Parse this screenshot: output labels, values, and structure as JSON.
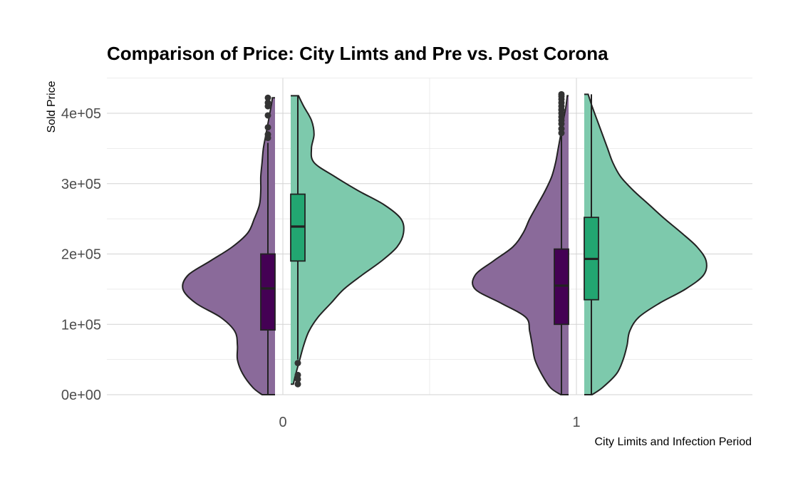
{
  "colors": {
    "pre": "#8a6a9a",
    "post": "#7dc9ac",
    "pre_box": "#440154",
    "post_box": "#22a671",
    "outline": "#222222",
    "grid": "#d3d3d3"
  },
  "chart_data": {
    "type": "violin",
    "title": "Comparison of Price: City Limts and Pre vs. Post Corona",
    "xlabel": "City Limits and Infection Period",
    "ylabel": "Sold Price",
    "ylim": [
      0,
      450000
    ],
    "yticks": [
      0,
      100000,
      200000,
      300000,
      400000
    ],
    "ytick_labels": [
      "0e+00",
      "1e+05",
      "2e+05",
      "3e+05",
      "4e+05"
    ],
    "categories": [
      "0",
      "1"
    ],
    "grid": true,
    "legend": "none",
    "series": [
      {
        "group": "0",
        "period": "pre",
        "violin": [
          [
            0,
            0.1
          ],
          [
            10000,
            0.17
          ],
          [
            30000,
            0.25
          ],
          [
            50000,
            0.29
          ],
          [
            70000,
            0.29
          ],
          [
            90000,
            0.31
          ],
          [
            110000,
            0.42
          ],
          [
            130000,
            0.61
          ],
          [
            150000,
            0.71
          ],
          [
            170000,
            0.67
          ],
          [
            190000,
            0.5
          ],
          [
            210000,
            0.33
          ],
          [
            230000,
            0.21
          ],
          [
            250000,
            0.16
          ],
          [
            270000,
            0.12
          ],
          [
            290000,
            0.11
          ],
          [
            310000,
            0.11
          ],
          [
            330000,
            0.1
          ],
          [
            350000,
            0.09
          ],
          [
            370000,
            0.07
          ],
          [
            390000,
            0.05
          ],
          [
            410000,
            0.03
          ],
          [
            422000,
            0.02
          ]
        ],
        "box": {
          "q1": 92000,
          "median": 151000,
          "q3": 200000,
          "lower": 0,
          "upper": 358000
        },
        "outliers": [
          365000,
          370000,
          380000,
          397000,
          410000,
          415000,
          422000
        ]
      },
      {
        "group": "0",
        "period": "post",
        "violin": [
          [
            15000,
            0.02
          ],
          [
            30000,
            0.04
          ],
          [
            50000,
            0.07
          ],
          [
            70000,
            0.1
          ],
          [
            90000,
            0.14
          ],
          [
            110000,
            0.21
          ],
          [
            130000,
            0.31
          ],
          [
            150000,
            0.41
          ],
          [
            170000,
            0.55
          ],
          [
            190000,
            0.7
          ],
          [
            210000,
            0.82
          ],
          [
            230000,
            0.87
          ],
          [
            250000,
            0.85
          ],
          [
            270000,
            0.72
          ],
          [
            290000,
            0.52
          ],
          [
            310000,
            0.34
          ],
          [
            330000,
            0.18
          ],
          [
            350000,
            0.16
          ],
          [
            370000,
            0.18
          ],
          [
            390000,
            0.16
          ],
          [
            410000,
            0.1
          ],
          [
            425000,
            0.06
          ]
        ],
        "box": {
          "q1": 190000,
          "median": 239000,
          "q3": 285000,
          "lower": 50000,
          "upper": 425000
        },
        "outliers": [
          15000,
          22000,
          28000,
          45000
        ]
      },
      {
        "group": "1",
        "period": "pre",
        "violin": [
          [
            0,
            0.06
          ],
          [
            10000,
            0.14
          ],
          [
            30000,
            0.21
          ],
          [
            50000,
            0.26
          ],
          [
            70000,
            0.28
          ],
          [
            90000,
            0.3
          ],
          [
            110000,
            0.33
          ],
          [
            130000,
            0.52
          ],
          [
            150000,
            0.72
          ],
          [
            170000,
            0.72
          ],
          [
            190000,
            0.58
          ],
          [
            210000,
            0.43
          ],
          [
            230000,
            0.35
          ],
          [
            250000,
            0.3
          ],
          [
            270000,
            0.24
          ],
          [
            290000,
            0.18
          ],
          [
            310000,
            0.13
          ],
          [
            330000,
            0.1
          ],
          [
            350000,
            0.08
          ],
          [
            370000,
            0.06
          ],
          [
            390000,
            0.04
          ],
          [
            410000,
            0.02
          ],
          [
            425000,
            0.01
          ]
        ],
        "box": {
          "q1": 100000,
          "median": 155000,
          "q3": 207000,
          "lower": 0,
          "upper": 370000
        },
        "outliers": [
          372000,
          378000,
          385000,
          390000,
          395000,
          400000,
          405000,
          410000,
          415000,
          420000,
          424000,
          427000
        ]
      },
      {
        "group": "1",
        "period": "post",
        "violin": [
          [
            0,
            0.06
          ],
          [
            10000,
            0.14
          ],
          [
            30000,
            0.25
          ],
          [
            50000,
            0.3
          ],
          [
            70000,
            0.33
          ],
          [
            90000,
            0.35
          ],
          [
            110000,
            0.42
          ],
          [
            130000,
            0.58
          ],
          [
            150000,
            0.78
          ],
          [
            170000,
            0.92
          ],
          [
            190000,
            0.94
          ],
          [
            210000,
            0.87
          ],
          [
            230000,
            0.75
          ],
          [
            250000,
            0.62
          ],
          [
            270000,
            0.5
          ],
          [
            290000,
            0.38
          ],
          [
            310000,
            0.28
          ],
          [
            330000,
            0.22
          ],
          [
            350000,
            0.18
          ],
          [
            370000,
            0.14
          ],
          [
            390000,
            0.1
          ],
          [
            410000,
            0.06
          ],
          [
            427000,
            0.03
          ]
        ],
        "box": {
          "q1": 135000,
          "median": 193000,
          "q3": 252000,
          "lower": 0,
          "upper": 427000
        },
        "outliers": []
      }
    ]
  }
}
